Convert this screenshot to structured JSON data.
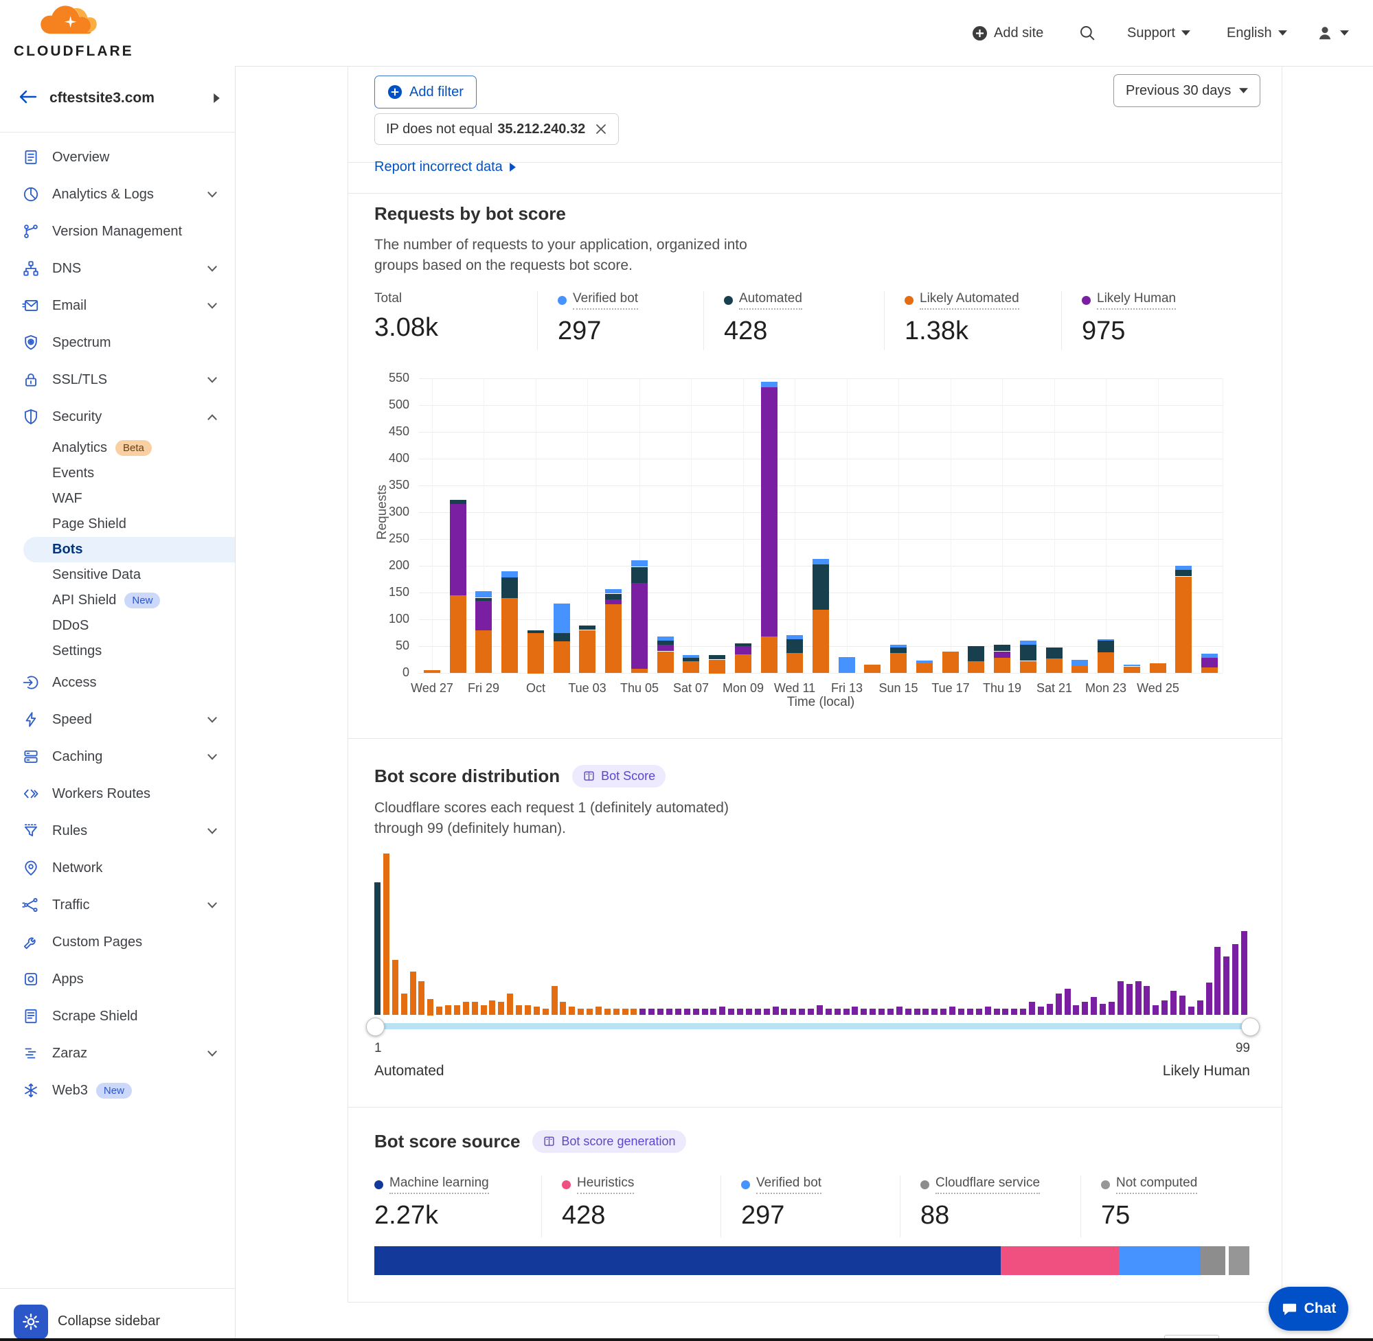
{
  "topbar": {
    "brand": "CLOUDFLARE",
    "add_site": "Add site",
    "support": "Support",
    "language": "English"
  },
  "sidebar": {
    "site": "cftestsite3.com",
    "collapse_label": "Collapse sidebar",
    "items": [
      {
        "label": "Overview",
        "icon": "overview"
      },
      {
        "label": "Analytics & Logs",
        "icon": "analytics",
        "caret": "down"
      },
      {
        "label": "Version Management",
        "icon": "version"
      },
      {
        "label": "DNS",
        "icon": "dns",
        "caret": "down"
      },
      {
        "label": "Email",
        "icon": "email",
        "caret": "down"
      },
      {
        "label": "Spectrum",
        "icon": "spectrum"
      },
      {
        "label": "SSL/TLS",
        "icon": "ssl",
        "caret": "down"
      },
      {
        "label": "Security",
        "icon": "security",
        "caret": "up"
      },
      {
        "label": "Analytics",
        "sub": true,
        "badge": {
          "text": "Beta",
          "type": "beta"
        }
      },
      {
        "label": "Events",
        "sub": true
      },
      {
        "label": "WAF",
        "sub": true
      },
      {
        "label": "Page Shield",
        "sub": true
      },
      {
        "label": "Bots",
        "sub": true,
        "active": true
      },
      {
        "label": "Sensitive Data",
        "sub": true
      },
      {
        "label": "API Shield",
        "sub": true,
        "badge": {
          "text": "New",
          "type": "new"
        }
      },
      {
        "label": "DDoS",
        "sub": true
      },
      {
        "label": "Settings",
        "sub": true
      },
      {
        "label": "Access",
        "icon": "access"
      },
      {
        "label": "Speed",
        "icon": "speed",
        "caret": "down"
      },
      {
        "label": "Caching",
        "icon": "caching",
        "caret": "down"
      },
      {
        "label": "Workers Routes",
        "icon": "workers"
      },
      {
        "label": "Rules",
        "icon": "rules",
        "caret": "down"
      },
      {
        "label": "Network",
        "icon": "network"
      },
      {
        "label": "Traffic",
        "icon": "traffic",
        "caret": "down"
      },
      {
        "label": "Custom Pages",
        "icon": "custom-pages"
      },
      {
        "label": "Apps",
        "icon": "apps"
      },
      {
        "label": "Scrape Shield",
        "icon": "scrape-shield"
      },
      {
        "label": "Zaraz",
        "icon": "zaraz",
        "caret": "down"
      },
      {
        "label": "Web3",
        "icon": "web3",
        "badge": {
          "text": "New",
          "type": "new"
        }
      }
    ]
  },
  "filter_bar": {
    "add_filter": "Add filter",
    "chip_text": "IP does not equal",
    "chip_value": "35.212.240.32",
    "date_range": "Previous 30 days"
  },
  "report_link": "Report incorrect data",
  "requests_card": {
    "title": "Requests by bot score",
    "description": "The number of requests to your application, organized into groups based on the requests bot score.",
    "stats": [
      {
        "label": "Total",
        "value": "3.08k",
        "color": null
      },
      {
        "label": "Verified bot",
        "value": "297",
        "color": "#4693ff"
      },
      {
        "label": "Automated",
        "value": "428",
        "color": "#173f4e"
      },
      {
        "label": "Likely Automated",
        "value": "1.38k",
        "color": "#e36d10"
      },
      {
        "label": "Likely Human",
        "value": "975",
        "color": "#7b1fa2"
      }
    ]
  },
  "distribution_card": {
    "title": "Bot score distribution",
    "badge": "Bot Score",
    "description": "Cloudflare scores each request 1 (definitely automated) through 99 (definitely human).",
    "slider": {
      "min_label": "1",
      "max_label": "99",
      "left_label": "Automated",
      "right_label": "Likely Human"
    }
  },
  "source_card": {
    "title": "Bot score source",
    "badge": "Bot score generation",
    "stats": [
      {
        "label": "Machine learning",
        "value": "2.27k",
        "color": "#13399b"
      },
      {
        "label": "Heuristics",
        "value": "428",
        "color": "#f05080"
      },
      {
        "label": "Verified bot",
        "value": "297",
        "color": "#4693ff"
      },
      {
        "label": "Cloudflare service",
        "value": "88",
        "color": "#8d8d8d"
      },
      {
        "label": "Not computed",
        "value": "75",
        "color": "#969696"
      }
    ]
  },
  "chat_label": "Chat",
  "chart_data": [
    {
      "id": "requests_by_bot_score",
      "type": "bar",
      "stacked": true,
      "title": "Requests by bot score",
      "xlabel": "Time (local)",
      "ylabel": "Requests",
      "ylim": [
        0,
        550
      ],
      "ytick_step": 50,
      "grid": true,
      "x_tick_labels": [
        "Wed 27",
        "Fri 29",
        "Oct",
        "Tue 03",
        "Thu 05",
        "Sat 07",
        "Mon 09",
        "Wed 11",
        "Fri 13",
        "Sun 15",
        "Tue 17",
        "Thu 19",
        "Sat 21",
        "Mon 23",
        "Wed 25"
      ],
      "x_tick_positions": [
        0,
        2,
        4,
        6,
        8,
        10,
        12,
        14,
        16,
        18,
        20,
        22,
        24,
        26,
        28
      ],
      "series": [
        {
          "name": "Likely Automated",
          "color": "#e36d10",
          "values": [
            5,
            145,
            80,
            140,
            75,
            60,
            80,
            128,
            8,
            40,
            22,
            25,
            35,
            68,
            38,
            118,
            0,
            15,
            38,
            18,
            40,
            22,
            28,
            22,
            28,
            15,
            38,
            12,
            18,
            180,
            10
          ]
        },
        {
          "name": "Likely Human",
          "color": "#7b1fa2",
          "values": [
            0,
            170,
            55,
            0,
            0,
            0,
            0,
            10,
            160,
            12,
            0,
            0,
            15,
            465,
            0,
            0,
            0,
            0,
            0,
            0,
            0,
            0,
            12,
            0,
            0,
            0,
            0,
            0,
            0,
            0,
            18
          ]
        },
        {
          "name": "Automated",
          "color": "#173f4e",
          "values": [
            0,
            8,
            5,
            38,
            5,
            15,
            8,
            10,
            30,
            8,
            6,
            8,
            5,
            0,
            25,
            85,
            0,
            0,
            10,
            0,
            0,
            28,
            12,
            30,
            20,
            0,
            22,
            0,
            0,
            12,
            0
          ]
        },
        {
          "name": "Verified bot",
          "color": "#4693ff",
          "values": [
            0,
            0,
            12,
            12,
            0,
            55,
            0,
            8,
            12,
            8,
            5,
            0,
            0,
            10,
            8,
            10,
            30,
            0,
            5,
            5,
            0,
            0,
            0,
            8,
            0,
            10,
            3,
            3,
            0,
            8,
            8
          ]
        }
      ],
      "totals": {
        "Total": "3.08k",
        "Verified bot": "297",
        "Automated": "428",
        "Likely Automated": "1.38k",
        "Likely Human": "975"
      }
    },
    {
      "id": "bot_score_distribution",
      "type": "bar",
      "x_range": [
        1,
        99
      ],
      "xlabel_left": "Automated",
      "xlabel_right": "Likely Human",
      "color_ranges": {
        "score_1": "#173f4e",
        "scores_2_30": "#e36d10",
        "scores_31_99": "#7b1fa2"
      },
      "values_relative": [
        0.82,
        1.0,
        0.34,
        0.13,
        0.27,
        0.21,
        0.1,
        0.05,
        0.06,
        0.06,
        0.08,
        0.08,
        0.06,
        0.09,
        0.08,
        0.13,
        0.06,
        0.06,
        0.05,
        0.04,
        0.18,
        0.08,
        0.05,
        0.04,
        0.04,
        0.05,
        0.04,
        0.04,
        0.04,
        0.04,
        0.04,
        0.04,
        0.04,
        0.04,
        0.04,
        0.04,
        0.04,
        0.04,
        0.04,
        0.05,
        0.04,
        0.04,
        0.04,
        0.04,
        0.04,
        0.05,
        0.04,
        0.04,
        0.04,
        0.04,
        0.06,
        0.04,
        0.04,
        0.04,
        0.05,
        0.04,
        0.04,
        0.04,
        0.04,
        0.05,
        0.04,
        0.04,
        0.04,
        0.04,
        0.04,
        0.05,
        0.04,
        0.04,
        0.04,
        0.05,
        0.04,
        0.04,
        0.04,
        0.04,
        0.08,
        0.05,
        0.07,
        0.13,
        0.16,
        0.06,
        0.08,
        0.11,
        0.07,
        0.08,
        0.21,
        0.19,
        0.21,
        0.18,
        0.06,
        0.09,
        0.15,
        0.12,
        0.05,
        0.09,
        0.2,
        0.42,
        0.36,
        0.44,
        0.52
      ]
    },
    {
      "id": "bot_score_source",
      "type": "stacked-bar-horizontal",
      "segments": [
        {
          "label": "Machine learning",
          "value": 2270,
          "color": "#13399b"
        },
        {
          "label": "Heuristics",
          "value": 428,
          "color": "#f05080"
        },
        {
          "label": "Verified bot",
          "value": 297,
          "color": "#4693ff"
        },
        {
          "label": "Cloudflare service",
          "value": 88,
          "color": "#8d8d8d"
        },
        {
          "label": "Not computed",
          "value": 75,
          "color": "#969696"
        }
      ]
    }
  ]
}
